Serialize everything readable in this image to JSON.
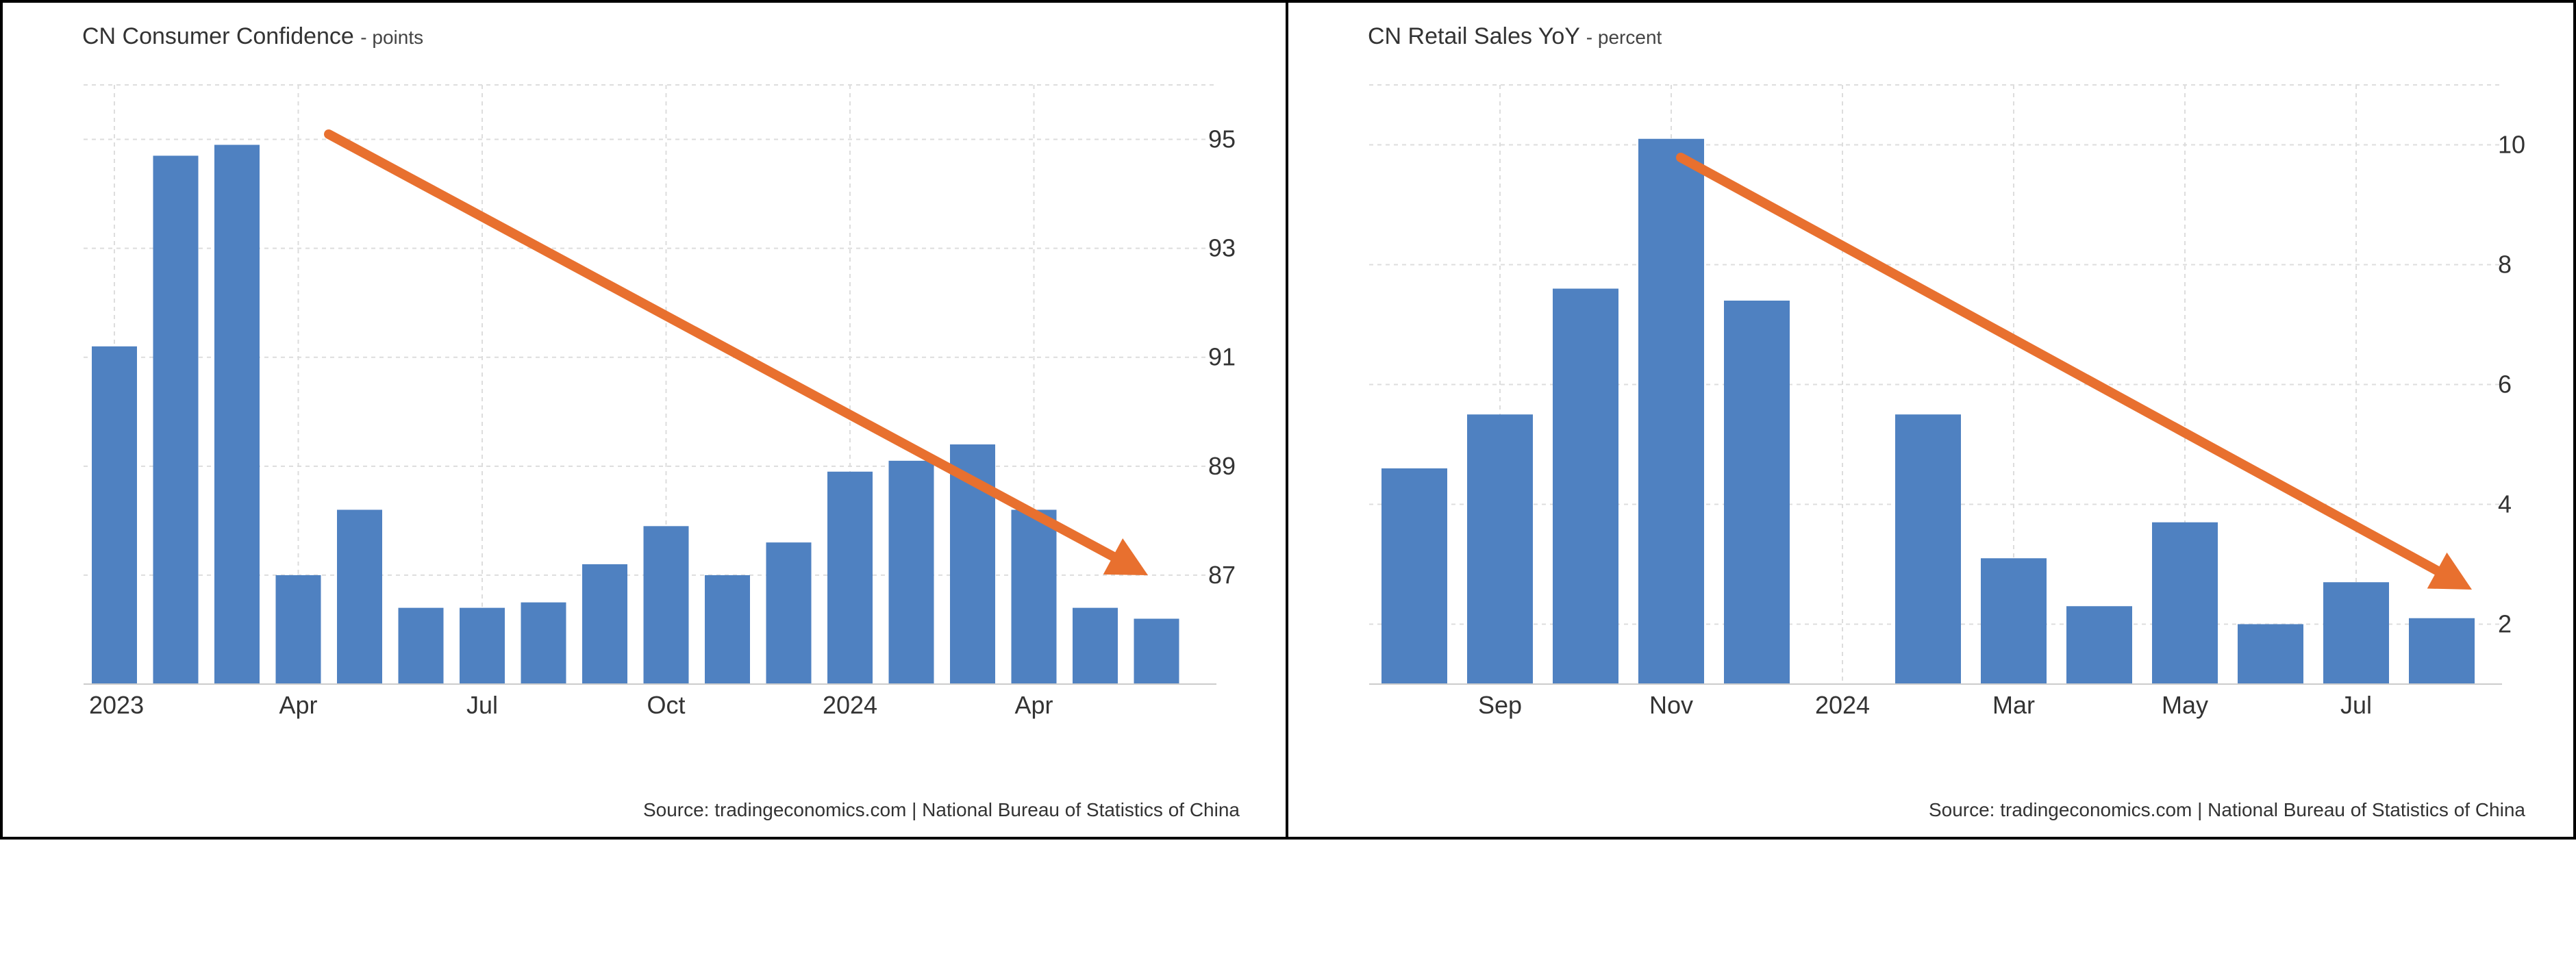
{
  "colors": {
    "bar": "#4f81c1",
    "arrow": "#e8702f",
    "grid": "#dddddd",
    "text": "#333333",
    "border": "#000000"
  },
  "chart_data": [
    {
      "type": "bar",
      "title": "CN Consumer Confidence",
      "unit": "points",
      "source": "Source: tradingeconomics.com | National Bureau of Statistics of China",
      "categories": [
        "2023-01",
        "2023-02",
        "2023-03",
        "2023-04",
        "2023-05",
        "2023-06",
        "2023-07",
        "2023-08",
        "2023-09",
        "2023-10",
        "2023-11",
        "2023-12",
        "2024-01",
        "2024-02",
        "2024-03",
        "2024-04",
        "2024-05",
        "2024-06"
      ],
      "values": [
        91.2,
        94.7,
        94.9,
        87.0,
        88.2,
        86.4,
        86.4,
        86.5,
        87.2,
        87.9,
        87.0,
        87.6,
        88.9,
        89.1,
        89.4,
        88.2,
        86.4,
        86.2
      ],
      "x_ticks": [
        "2023",
        "Apr",
        "Jul",
        "Oct",
        "2024",
        "Apr"
      ],
      "ylim": [
        85,
        96
      ],
      "y_ticks": [
        87,
        89,
        91,
        93,
        95
      ],
      "y_axis_side": "right",
      "grid": true,
      "annotation": "downward trend arrow"
    },
    {
      "type": "bar",
      "title": "CN Retail Sales YoY",
      "unit": "percent",
      "source": "Source: tradingeconomics.com | National Bureau of Statistics of China",
      "categories": [
        "2023-08",
        "2023-09",
        "2023-10",
        "2023-11",
        "2023-12",
        "2024-01",
        "2024-02",
        "2024-03",
        "2024-04",
        "2024-05",
        "2024-06",
        "2024-07",
        "2024-08"
      ],
      "values": [
        4.6,
        5.5,
        7.6,
        10.1,
        7.4,
        null,
        5.5,
        3.1,
        2.3,
        3.7,
        2.0,
        2.7,
        2.1
      ],
      "x_ticks": [
        "Sep",
        "Nov",
        "2024",
        "Mar",
        "May",
        "Jul"
      ],
      "ylim": [
        1,
        11
      ],
      "y_ticks": [
        2,
        4,
        6,
        8,
        10
      ],
      "y_axis_side": "right",
      "grid": true,
      "annotation": "downward trend arrow"
    }
  ]
}
